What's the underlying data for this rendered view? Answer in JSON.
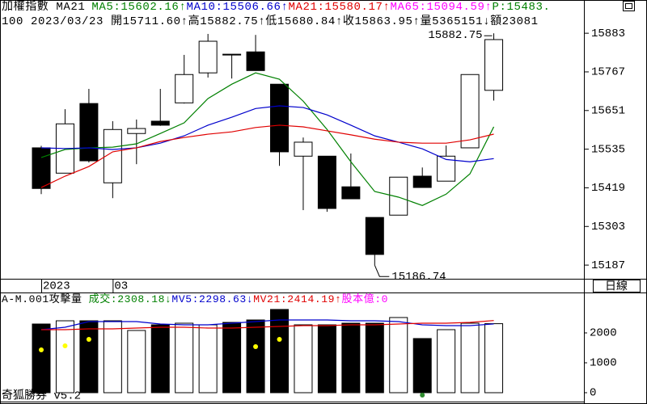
{
  "chart_data": [
    {
      "type": "candlestick",
      "title": "加權指數 MA21",
      "info_line": "100 2023/03/23 開15711.60↑高15882.75↑低15680.84↑收15863.95↑量5365151↓額23081",
      "categories": [
        "2023",
        null,
        null,
        "03",
        null,
        null,
        null,
        null,
        null,
        null,
        null,
        null,
        null,
        null,
        null,
        null,
        null,
        null,
        null,
        null
      ],
      "open": [
        15539,
        15463,
        15672,
        15434,
        15582,
        15619,
        15674,
        15764,
        15818,
        15827,
        15730,
        15514,
        15514,
        15422,
        15330,
        15337,
        15454,
        15439,
        15539,
        15711.6
      ],
      "high": [
        15545,
        15655,
        15716,
        15619,
        15624,
        15716,
        15818,
        15881,
        15820,
        15878,
        15730,
        15570,
        15514,
        15522,
        15330,
        15451,
        15480,
        15546,
        15759,
        15882.75
      ],
      "low": [
        15400,
        15463,
        15495,
        15388,
        15490,
        15605,
        15672,
        15750,
        15747,
        15771,
        15485,
        15352,
        15347,
        15386,
        15186.74,
        15337,
        15420,
        15439,
        15539,
        15680.84
      ],
      "close": [
        15417,
        15611,
        15500,
        15594,
        15597,
        15607,
        15759,
        15859,
        15820,
        15771,
        15527,
        15556,
        15357,
        15386,
        15219,
        15451,
        15420,
        15514,
        15759,
        15863.95
      ],
      "up_color": "#ffffff",
      "down_color": "#000000",
      "series": [
        {
          "name": "MA5:15602.16↑",
          "color": "#008000",
          "values": [
            15510,
            15534,
            15539,
            15541,
            15551,
            15582,
            15614,
            15687,
            15730,
            15764,
            15745,
            15679,
            15594,
            15497,
            15408,
            15391,
            15366,
            15400,
            15461,
            15602.16
          ]
        },
        {
          "name": "MA10:15506.66↑",
          "color": "#0000cc",
          "values": [
            15539,
            15537,
            15539,
            15534,
            15539,
            15553,
            15575,
            15607,
            15631,
            15657,
            15665,
            15660,
            15638,
            15607,
            15575,
            15556,
            15536,
            15504,
            15497,
            15506.66
          ]
        },
        {
          "name": "MA21:15580.17↑",
          "color": "#e00000",
          "values": [
            15420,
            15454,
            15483,
            15527,
            15539,
            15558,
            15570,
            15580,
            15587,
            15600,
            15607,
            15602,
            15590,
            15578,
            15565,
            15556,
            15553,
            15553,
            15563,
            15580.17
          ]
        }
      ],
      "extra_legend": [
        {
          "text": "MA65:15094.59↑",
          "color": "#ff00ff"
        },
        {
          "text": "P:15483.",
          "color": "#008000"
        }
      ],
      "ylim": [
        15146,
        15910
      ],
      "yticks": [
        15883,
        15767,
        15651,
        15535,
        15419,
        15303,
        15187
      ]
    },
    {
      "type": "bar",
      "title": "A-M.001攻擊量",
      "name": "成交:2308.18↓",
      "name_color": "#008000",
      "values": [
        2297,
        2405,
        2405,
        2405,
        2081,
        2270,
        2324,
        2270,
        2351,
        2432,
        2784,
        2270,
        2270,
        2324,
        2324,
        2514,
        1811,
        2108,
        2324,
        2308.18
      ],
      "bar_colors": [
        "#000000",
        "#ffffff",
        "#000000",
        "#ffffff",
        "#ffffff",
        "#000000",
        "#ffffff",
        "#ffffff",
        "#000000",
        "#000000",
        "#000000",
        "#ffffff",
        "#000000",
        "#000000",
        "#000000",
        "#ffffff",
        "#000000",
        "#ffffff",
        "#ffffff",
        "#ffffff"
      ],
      "series": [
        {
          "name": "MV5:2298.63↓",
          "color": "#0000cc",
          "values": [
            2108,
            2189,
            2378,
            2378,
            2378,
            2297,
            2270,
            2270,
            2324,
            2378,
            2432,
            2432,
            2432,
            2405,
            2405,
            2378,
            2270,
            2243,
            2243,
            2298.63
          ]
        },
        {
          "name": "MV21:2414.19↑",
          "color": "#e00000",
          "values": [
            2108,
            2108,
            2135,
            2135,
            2162,
            2189,
            2189,
            2162,
            2162,
            2189,
            2216,
            2243,
            2243,
            2270,
            2270,
            2297,
            2324,
            2324,
            2351,
            2414.19
          ]
        }
      ],
      "signal_values": [
        1432,
        1568,
        1784,
        null,
        null,
        null,
        null,
        null,
        null,
        1541,
        1784,
        null,
        null,
        null,
        null,
        null,
        -81,
        null,
        null,
        null
      ],
      "signal_colors": [
        "#ffff00",
        "#ffff00",
        "#ffff00",
        null,
        null,
        null,
        null,
        null,
        null,
        "#ffff00",
        "#ffff00",
        null,
        null,
        null,
        null,
        null,
        "#2e8b2e",
        null,
        null,
        null
      ],
      "extra_legend": [
        {
          "text": "股本億:0",
          "color": "#ff00ff"
        }
      ],
      "ylim": [
        -297,
        3270
      ],
      "yticks": [
        2000,
        1000,
        0
      ]
    }
  ],
  "period_button": "日線",
  "brand": "奇狐勝券 v5.2"
}
